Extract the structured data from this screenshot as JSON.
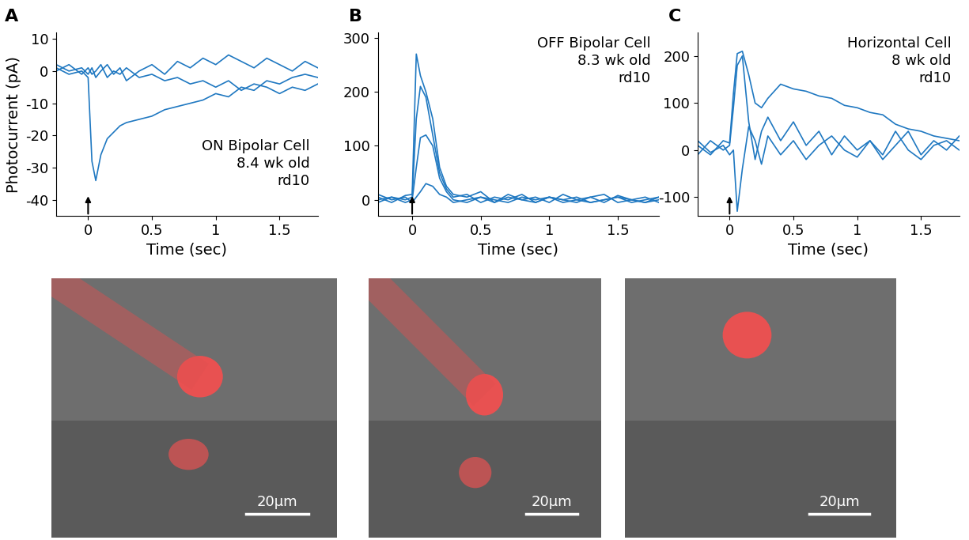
{
  "chart_data": [
    {
      "type": "line",
      "panel": "A",
      "annotation": [
        "ON Bipolar Cell",
        "8.4 wk old",
        "rd10"
      ],
      "x_label": "Time (sec)",
      "y_label": "Photocurrent (pA)",
      "stimulus": 0,
      "x": [
        -0.25,
        -0.15,
        -0.05,
        0,
        0.03,
        0.06,
        0.1,
        0.15,
        0.2,
        0.25,
        0.3,
        0.4,
        0.5,
        0.6,
        0.7,
        0.8,
        0.9,
        1.0,
        1.1,
        1.2,
        1.3,
        1.4,
        1.5,
        1.6,
        1.7,
        1.8
      ],
      "xlim": [
        -0.25,
        1.8
      ],
      "xticks": [
        0,
        0.5,
        1,
        1.5
      ],
      "ylim": [
        -45,
        12
      ],
      "yticks": [
        -40,
        -30,
        -20,
        -10,
        0,
        10
      ],
      "color": "#1f78c1",
      "series": [
        {
          "values": [
            1,
            -1,
            0,
            -2,
            -28,
            -34,
            -26,
            -21,
            -19,
            -17,
            -16,
            -15,
            -14,
            -12,
            -11,
            -10,
            -9,
            -7,
            -8,
            -5,
            -6,
            -3,
            -4,
            -2,
            -1,
            -2
          ]
        },
        {
          "values": [
            2,
            0,
            1,
            -1,
            1,
            -2,
            0,
            2,
            -1,
            1,
            -3,
            0,
            2,
            -1,
            3,
            1,
            4,
            2,
            5,
            3,
            1,
            4,
            2,
            0,
            3,
            1
          ]
        },
        {
          "values": [
            0,
            2,
            -1,
            1,
            -1,
            0,
            2,
            -2,
            0,
            -1,
            1,
            -2,
            -1,
            -3,
            -2,
            -4,
            -3,
            -5,
            -3,
            -6,
            -4,
            -5,
            -7,
            -5,
            -6,
            -4
          ]
        }
      ]
    },
    {
      "type": "line",
      "panel": "B",
      "annotation": [
        "OFF Bipolar Cell",
        "8.3 wk old",
        "rd10"
      ],
      "x_label": "Time (sec)",
      "stimulus": 0,
      "x": [
        -0.25,
        -0.15,
        -0.05,
        0,
        0.03,
        0.06,
        0.1,
        0.15,
        0.2,
        0.25,
        0.3,
        0.4,
        0.5,
        0.6,
        0.7,
        0.8,
        0.9,
        1.0,
        1.1,
        1.2,
        1.3,
        1.4,
        1.5,
        1.6,
        1.7,
        1.8
      ],
      "xlim": [
        -0.25,
        1.8
      ],
      "xticks": [
        0,
        0.5,
        1,
        1.5
      ],
      "ylim": [
        -30,
        310
      ],
      "yticks": [
        0,
        100,
        200,
        300
      ],
      "color": "#1f78c1",
      "series": [
        {
          "values": [
            5,
            -5,
            8,
            10,
            270,
            230,
            200,
            150,
            60,
            25,
            10,
            5,
            15,
            -5,
            10,
            0,
            5,
            -5,
            10,
            0,
            5,
            -5,
            8,
            0,
            -5,
            5
          ]
        },
        {
          "values": [
            -5,
            5,
            0,
            5,
            150,
            210,
            190,
            120,
            50,
            20,
            5,
            10,
            -5,
            5,
            0,
            10,
            -5,
            5,
            0,
            -5,
            5,
            10,
            -5,
            0,
            5,
            -5
          ]
        },
        {
          "values": [
            0,
            5,
            -5,
            0,
            60,
            115,
            120,
            100,
            40,
            15,
            0,
            -5,
            5,
            0,
            -5,
            5,
            0,
            5,
            -5,
            0,
            -5,
            0,
            5,
            -5,
            0,
            5
          ]
        },
        {
          "values": [
            10,
            0,
            5,
            -5,
            5,
            15,
            30,
            25,
            10,
            5,
            -5,
            0,
            5,
            -5,
            5,
            0,
            -5,
            5,
            0,
            5,
            -5,
            0,
            5,
            0,
            -5,
            0
          ]
        }
      ]
    },
    {
      "type": "line",
      "panel": "C",
      "annotation": [
        "Horizontal Cell",
        "8 wk old",
        "rd10"
      ],
      "x_label": "Time (sec)",
      "stimulus": 0,
      "x": [
        -0.25,
        -0.15,
        -0.05,
        0,
        0.03,
        0.06,
        0.1,
        0.15,
        0.2,
        0.25,
        0.3,
        0.4,
        0.5,
        0.6,
        0.7,
        0.8,
        0.9,
        1.0,
        1.1,
        1.2,
        1.3,
        1.4,
        1.5,
        1.6,
        1.7,
        1.8
      ],
      "xlim": [
        -0.25,
        1.8
      ],
      "xticks": [
        0,
        0.5,
        1,
        1.5
      ],
      "ylim": [
        -140,
        250
      ],
      "yticks": [
        -100,
        0,
        100,
        200
      ],
      "color": "#1f78c1",
      "series": [
        {
          "values": [
            10,
            -10,
            20,
            15,
            120,
            205,
            210,
            160,
            100,
            90,
            110,
            140,
            130,
            125,
            115,
            110,
            95,
            90,
            80,
            75,
            55,
            45,
            40,
            30,
            25,
            20
          ]
        },
        {
          "values": [
            -10,
            20,
            0,
            10,
            90,
            180,
            200,
            60,
            -20,
            40,
            70,
            20,
            60,
            10,
            40,
            -10,
            30,
            0,
            20,
            -20,
            10,
            40,
            -10,
            20,
            0,
            30
          ]
        },
        {
          "values": [
            20,
            -5,
            10,
            -10,
            0,
            -130,
            -40,
            50,
            20,
            -30,
            30,
            -10,
            20,
            -20,
            10,
            30,
            0,
            -15,
            20,
            -10,
            40,
            0,
            -20,
            10,
            20,
            0
          ]
        }
      ]
    }
  ],
  "images": [
    {
      "scale_bar": "20μm"
    },
    {
      "scale_bar": "20μm"
    },
    {
      "scale_bar": "20μm"
    }
  ]
}
